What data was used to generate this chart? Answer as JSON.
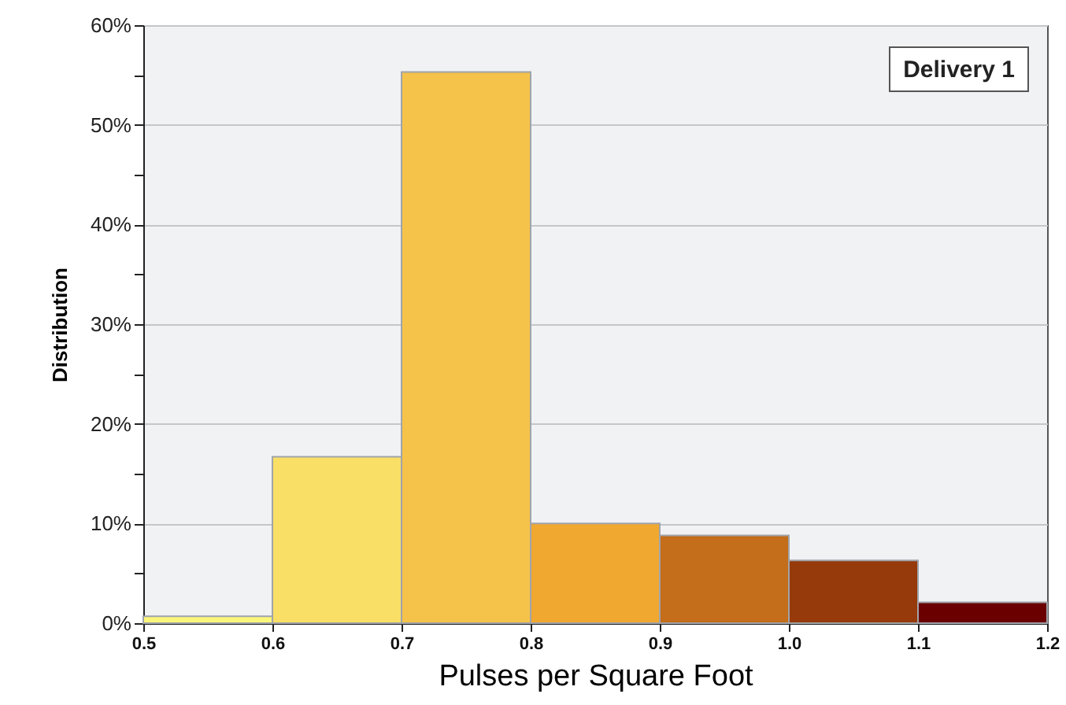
{
  "chart_data": {
    "type": "histogram",
    "xlabel": "Pulses per Square Foot",
    "ylabel": "Distribution",
    "annotations": [
      "Delivery 1"
    ],
    "bins": [
      0.5,
      0.6,
      0.7,
      0.8,
      0.9,
      1.0,
      1.1,
      1.2
    ],
    "values": [
      0.7,
      16.7,
      55.3,
      10.0,
      8.8,
      6.3,
      2.1
    ],
    "colors": [
      "#fbf57a",
      "#fadf66",
      "#f5c24a",
      "#f0a830",
      "#c46d1a",
      "#963a0b",
      "#6b0000"
    ],
    "xlim": [
      0.5,
      1.2
    ],
    "xticks": [
      {
        "value": 0.5,
        "label": "0.5"
      },
      {
        "value": 0.6,
        "label": "0.6"
      },
      {
        "value": 0.7,
        "label": "0.7"
      },
      {
        "value": 0.8,
        "label": "0.8"
      },
      {
        "value": 0.9,
        "label": "0.9"
      },
      {
        "value": 1.0,
        "label": "1.0"
      },
      {
        "value": 1.1,
        "label": "1.1"
      },
      {
        "value": 1.2,
        "label": "1.2"
      }
    ],
    "ylim": [
      0,
      60
    ],
    "yticks": [
      {
        "value": 0,
        "label": "0%"
      },
      {
        "value": 5,
        "label": null
      },
      {
        "value": 10,
        "label": "10%"
      },
      {
        "value": 15,
        "label": null
      },
      {
        "value": 20,
        "label": "20%"
      },
      {
        "value": 25,
        "label": null
      },
      {
        "value": 30,
        "label": "30%"
      },
      {
        "value": 35,
        "label": null
      },
      {
        "value": 40,
        "label": "40%"
      },
      {
        "value": 45,
        "label": null
      },
      {
        "value": 50,
        "label": "50%"
      },
      {
        "value": 55,
        "label": null
      },
      {
        "value": 60,
        "label": "60%"
      }
    ],
    "grid": "y"
  }
}
